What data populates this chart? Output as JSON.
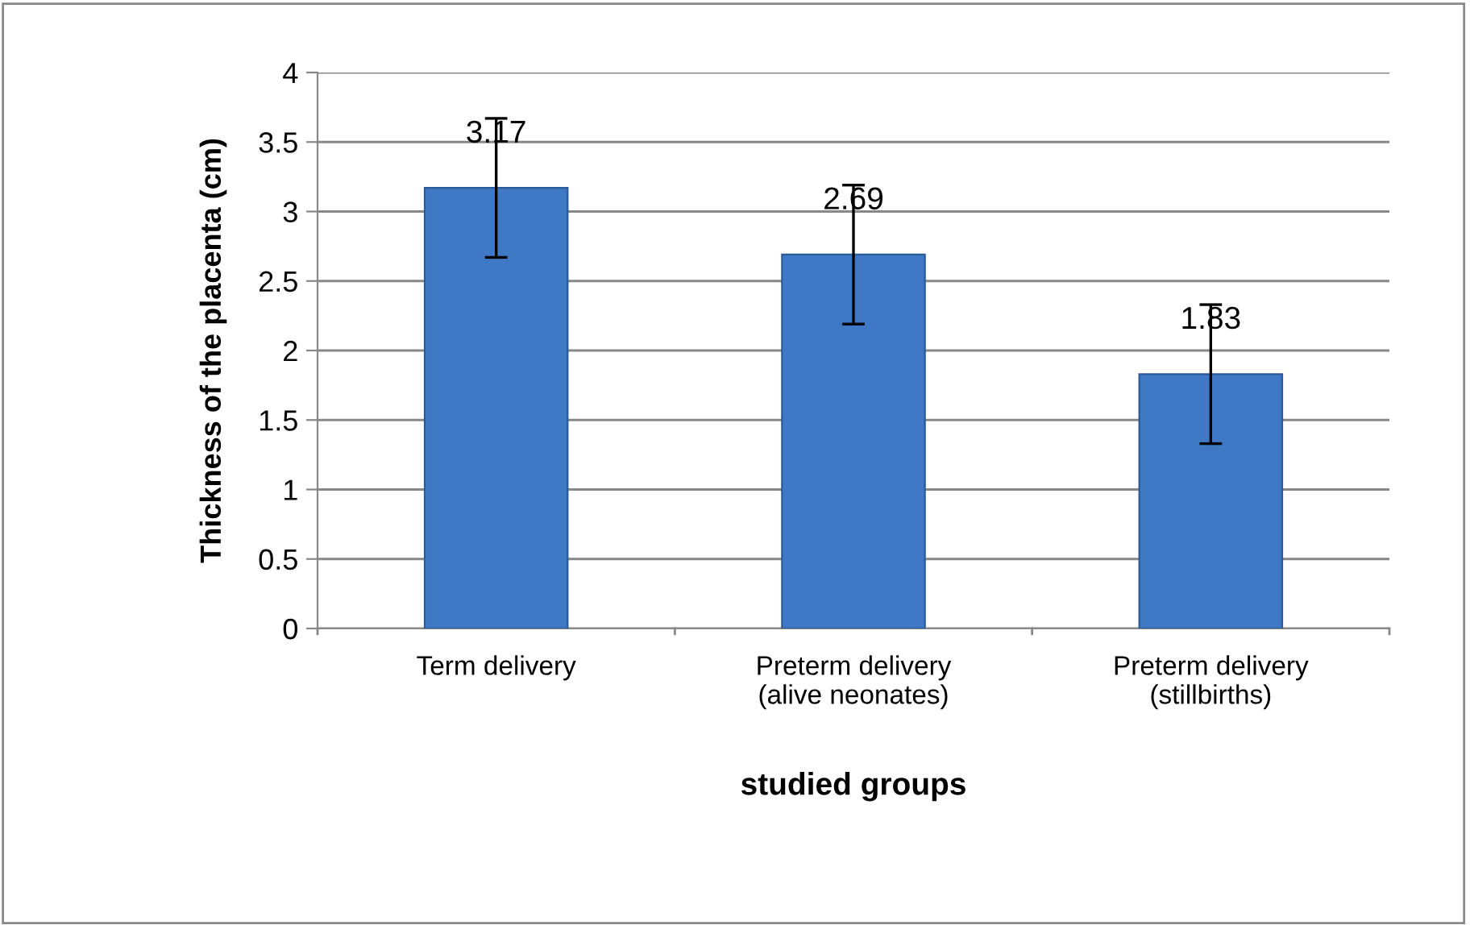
{
  "chart_data": {
    "type": "bar",
    "xlabel": "studied groups",
    "ylabel": "Thickness of the placenta (cm)",
    "categories": [
      "Term delivery",
      "Preterm delivery\n(alive neonates)",
      "Preterm delivery\n(stillbirths)"
    ],
    "values": [
      3.17,
      2.69,
      1.83
    ],
    "errors": [
      0.5,
      0.5,
      0.5
    ],
    "color": "#3f78c4",
    "ylim": [
      0,
      4
    ],
    "yticks": [
      0,
      0.5,
      1,
      1.5,
      2,
      2.5,
      3,
      3.5,
      4
    ],
    "grid": "y",
    "data_labels": true,
    "legend": false
  }
}
